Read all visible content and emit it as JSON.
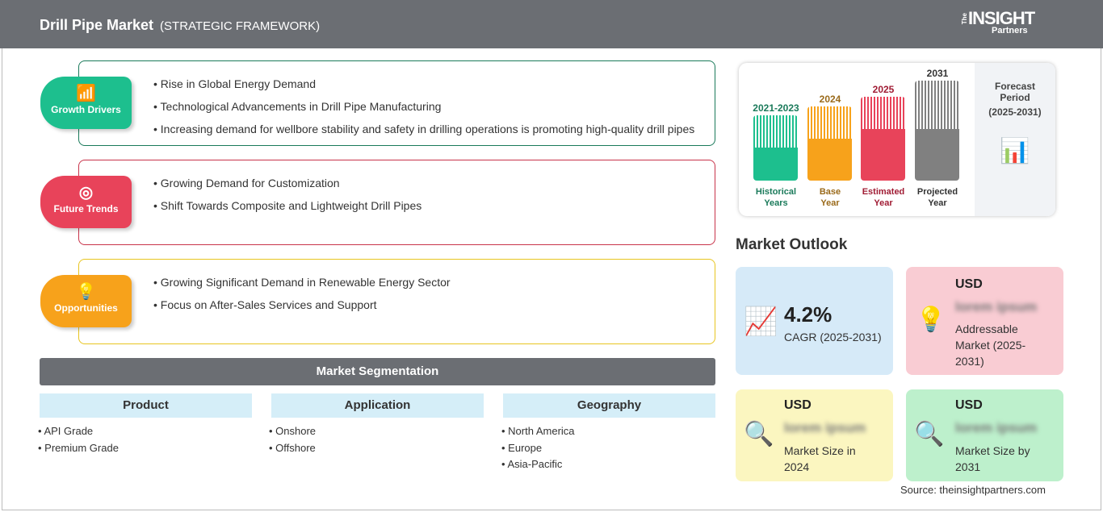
{
  "header": {
    "title": "Drill Pipe Market",
    "subtitle": "(STRATEGIC FRAMEWORK)",
    "logo": "The INSIGHT Partners"
  },
  "sections": [
    {
      "label": "Growth Drivers",
      "icon": "chart-growth-icon",
      "color": "#1dbf8e",
      "border": "#1a7a5a",
      "items": [
        "Rise in Global Energy Demand",
        "Technological Advancements in Drill Pipe Manufacturing",
        "Increasing demand for wellbore stability and safety in drilling operations is promoting high-quality drill pipes"
      ]
    },
    {
      "label": "Future Trends",
      "icon": "target-icon",
      "color": "#e8435a",
      "border": "#c8334a",
      "items": [
        "Growing Demand for Customization",
        "Shift Towards Composite and Lightweight Drill Pipes"
      ]
    },
    {
      "label": "Opportunities",
      "icon": "lightbulb-hand-icon",
      "color": "#f7a21b",
      "border": "#e8c520",
      "items": [
        "Growing Significant Demand in Renewable Energy Sector",
        "Focus on After-Sales Services and Support"
      ]
    }
  ],
  "segmentation": {
    "title": "Market Segmentation",
    "columns": [
      {
        "label": "Product",
        "items": [
          "API Grade",
          "Premium Grade"
        ]
      },
      {
        "label": "Application",
        "items": [
          "Onshore",
          "Offshore"
        ]
      },
      {
        "label": "Geography",
        "items": [
          "North America",
          "Europe",
          "Asia-Pacific"
        ]
      }
    ]
  },
  "timeline": {
    "bars": [
      {
        "year": "2021-2023",
        "label1": "Historical",
        "label2": "Years",
        "color": "#1dbf8e",
        "text": "#1a7a5a"
      },
      {
        "year": "2024",
        "label1": "Base",
        "label2": "Year",
        "color": "#f7a21b",
        "text": "#9a6a1a"
      },
      {
        "year": "2025",
        "label1": "Estimated",
        "label2": "Year",
        "color": "#e8435a",
        "text": "#a01c34"
      },
      {
        "year": "2031",
        "label1": "Projected",
        "label2": "Year",
        "color": "#808080",
        "text": "#333333"
      }
    ],
    "forecast": {
      "line1": "Forecast",
      "line2": "Period",
      "line3": "(2025-2031)"
    }
  },
  "outlook": {
    "title": "Market Outlook",
    "cards": [
      {
        "value": "4.2%",
        "label": "CAGR (2025-2031)",
        "color": "#d6eaf8"
      },
      {
        "usd": "USD",
        "blur": "lorem ipsum",
        "label": "Addressable Market (2025-2031)",
        "color": "#f9ccd3"
      },
      {
        "usd": "USD",
        "blur": "lorem ipsum",
        "label": "Market Size in 2024",
        "color": "#fbf6c0"
      },
      {
        "usd": "USD",
        "blur": "lorem ipsum",
        "label": "Market Size by 2031",
        "color": "#bdf0cc"
      }
    ]
  },
  "source": "Source: theinsightpartners.com"
}
